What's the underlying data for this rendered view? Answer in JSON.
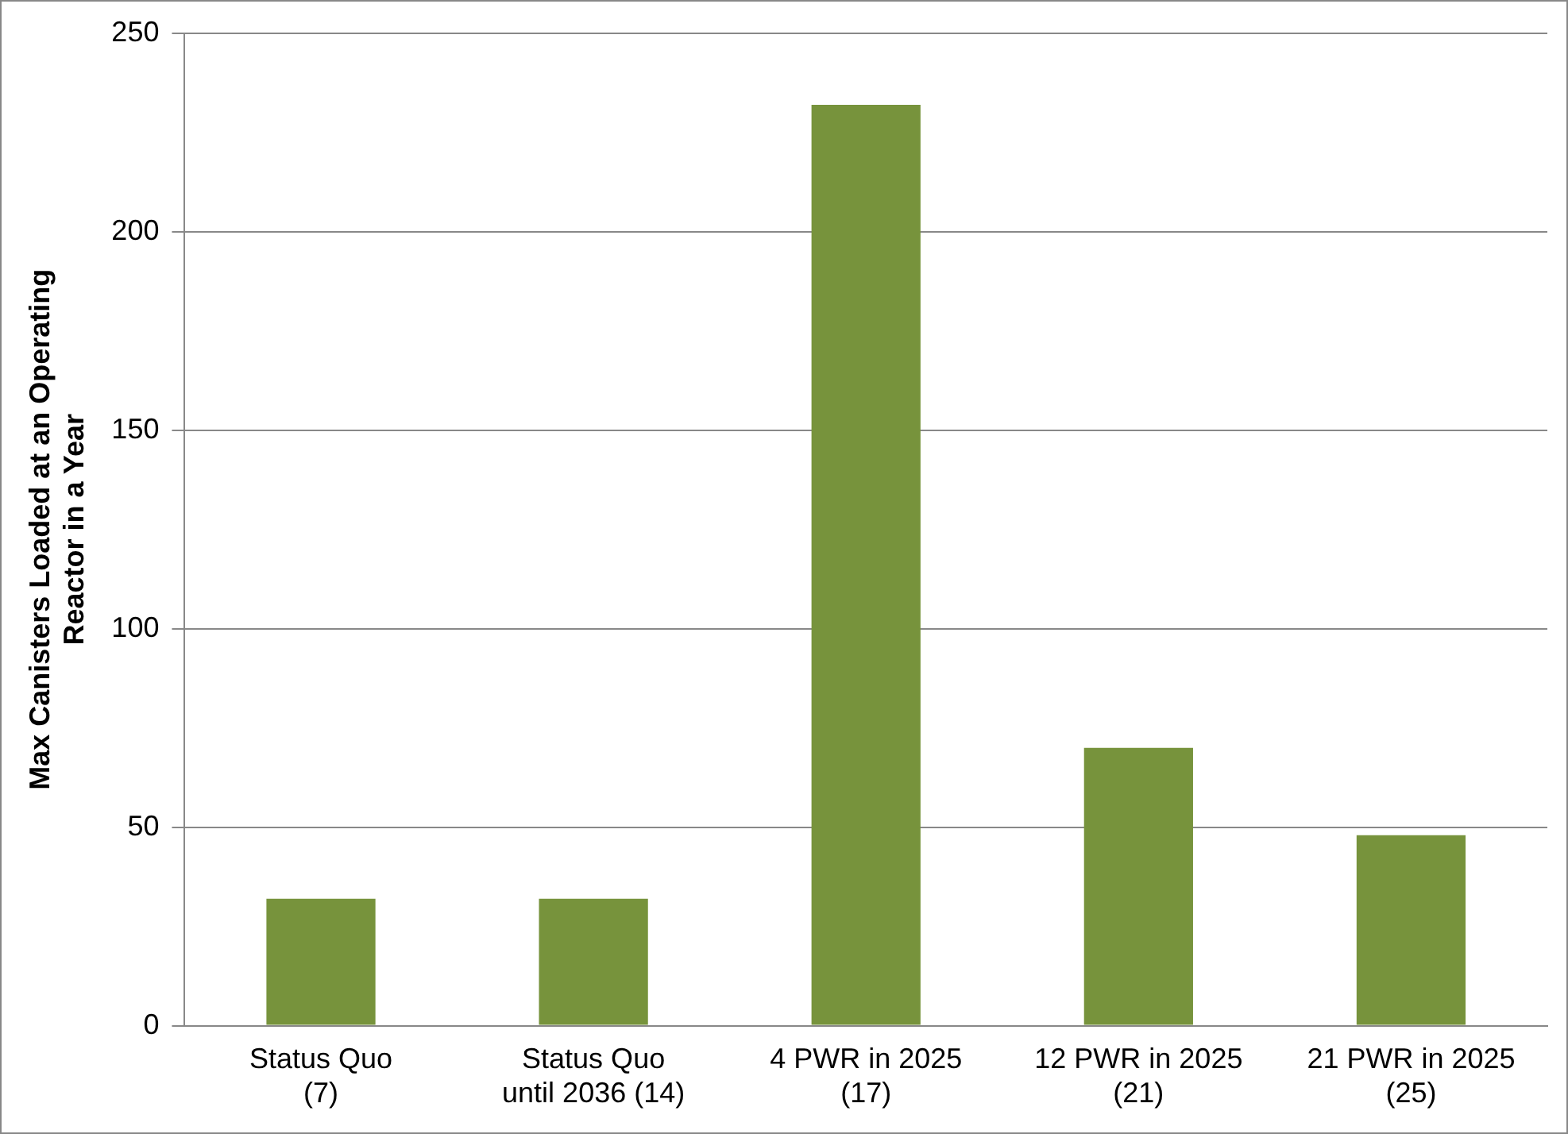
{
  "chart_data": {
    "type": "bar",
    "ylabel": "Max Canisters Loaded at an Operating Reactor in a Year",
    "categories": [
      "Status Quo\n(7)",
      "Status Quo\nuntil 2036 (14)",
      "4 PWR in 2025\n(17)",
      "12 PWR in 2025\n(21)",
      "21 PWR in 2025\n(25)"
    ],
    "values": [
      32,
      32,
      232,
      70,
      48
    ],
    "color": "#77933c",
    "ylim": [
      0,
      250
    ],
    "yticks": [
      0,
      50,
      100,
      150,
      200,
      250
    ],
    "grid": "y",
    "legend": false
  }
}
